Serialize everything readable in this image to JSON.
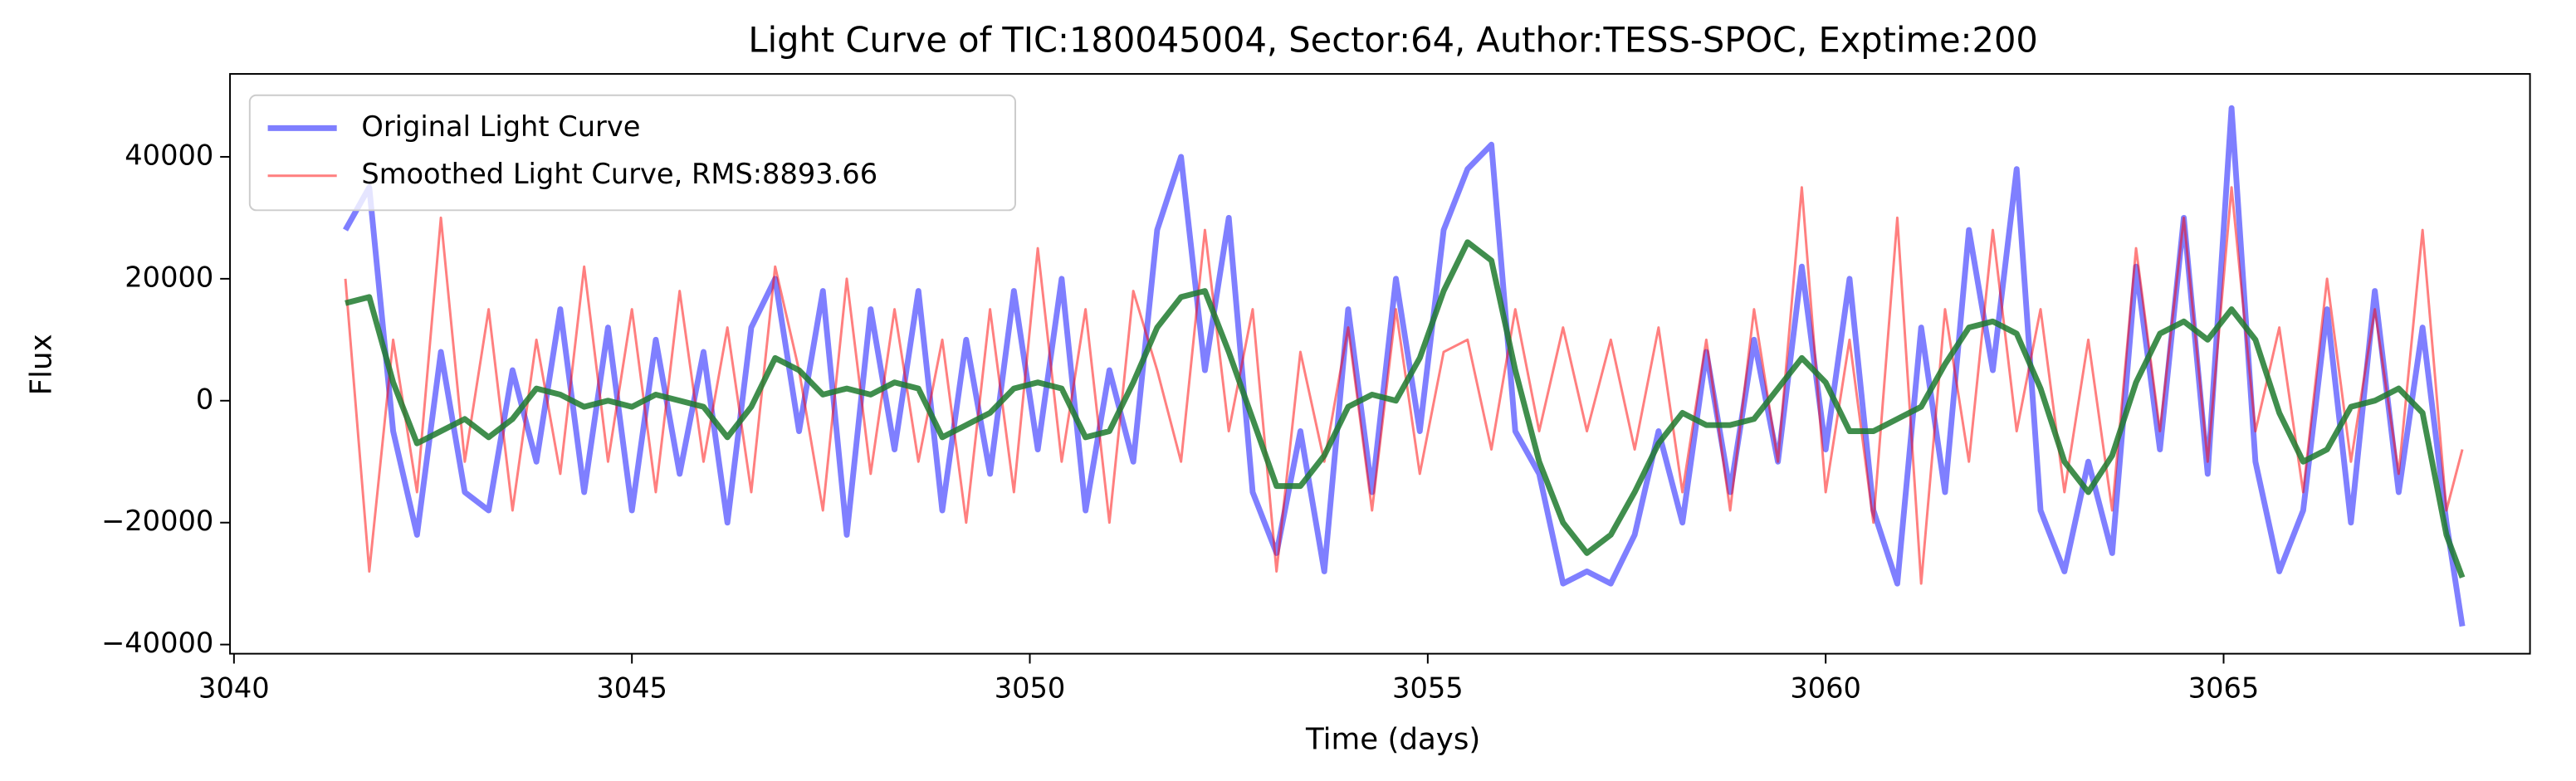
{
  "chart_data": {
    "type": "line",
    "title": "Light Curve of TIC:180045004, Sector:64, Author:TESS-SPOC, Exptime:200",
    "x_label": "Time (days)",
    "y_label": "Flux",
    "x": [
      3041.4,
      3041.7,
      3042.0,
      3042.3,
      3042.6,
      3042.9,
      3043.2,
      3043.5,
      3043.8,
      3044.1,
      3044.4,
      3044.7,
      3045.0,
      3045.3,
      3045.6,
      3045.9,
      3046.2,
      3046.5,
      3046.8,
      3047.1,
      3047.4,
      3047.7,
      3048.0,
      3048.3,
      3048.6,
      3048.9,
      3049.2,
      3049.5,
      3049.8,
      3050.1,
      3050.4,
      3050.7,
      3051.0,
      3051.3,
      3051.6,
      3051.9,
      3052.2,
      3052.5,
      3052.8,
      3053.1,
      3053.4,
      3053.7,
      3054.0,
      3054.3,
      3054.6,
      3054.9,
      3055.2,
      3055.5,
      3055.8,
      3056.1,
      3056.4,
      3056.7,
      3057.0,
      3057.3,
      3057.6,
      3057.9,
      3058.2,
      3058.5,
      3058.8,
      3059.1,
      3059.4,
      3059.7,
      3060.0,
      3060.3,
      3060.6,
      3060.9,
      3061.2,
      3061.5,
      3061.8,
      3062.1,
      3062.4,
      3062.7,
      3063.0,
      3063.3,
      3063.6,
      3063.9,
      3064.2,
      3064.5,
      3064.8,
      3065.1,
      3065.4,
      3065.7,
      3066.0,
      3066.3,
      3066.6,
      3066.9,
      3067.2,
      3067.5,
      3067.8,
      3068.0
    ],
    "series": [
      {
        "name": "Original Light Curve",
        "color": "#0000ff",
        "alpha": 0.5,
        "width": 3.5,
        "values": [
          28000,
          35000,
          -5000,
          -22000,
          8000,
          -15000,
          -18000,
          5000,
          -10000,
          15000,
          -15000,
          12000,
          -18000,
          10000,
          -12000,
          8000,
          -20000,
          12000,
          20000,
          -5000,
          18000,
          -22000,
          15000,
          -8000,
          18000,
          -18000,
          10000,
          -12000,
          18000,
          -8000,
          20000,
          -18000,
          5000,
          -10000,
          28000,
          40000,
          5000,
          30000,
          -15000,
          -25000,
          -5000,
          -28000,
          15000,
          -15000,
          20000,
          -5000,
          28000,
          38000,
          42000,
          -5000,
          -12000,
          -30000,
          -28000,
          -30000,
          -22000,
          -5000,
          -20000,
          8000,
          -15000,
          10000,
          -10000,
          22000,
          -8000,
          20000,
          -18000,
          -30000,
          12000,
          -15000,
          28000,
          5000,
          38000,
          -18000,
          -28000,
          -10000,
          -25000,
          22000,
          -8000,
          30000,
          -12000,
          48000,
          -10000,
          -28000,
          -18000,
          15000,
          -20000,
          18000,
          -15000,
          12000,
          -20000,
          -37000
        ]
      },
      {
        "name": "Smoothed Light Curve, RMS:8893.66",
        "color": "#ff0000",
        "alpha": 0.5,
        "width": 1.5,
        "values": [
          20000,
          -28000,
          10000,
          -15000,
          30000,
          -10000,
          15000,
          -18000,
          10000,
          -12000,
          22000,
          -10000,
          15000,
          -15000,
          18000,
          -10000,
          12000,
          -15000,
          22000,
          5000,
          -18000,
          20000,
          -12000,
          15000,
          -10000,
          10000,
          -20000,
          15000,
          -15000,
          25000,
          -10000,
          15000,
          -20000,
          18000,
          5000,
          -10000,
          28000,
          -5000,
          15000,
          -28000,
          8000,
          -10000,
          12000,
          -18000,
          15000,
          -12000,
          8000,
          10000,
          -8000,
          15000,
          -5000,
          12000,
          -5000,
          10000,
          -8000,
          12000,
          -15000,
          10000,
          -18000,
          15000,
          -10000,
          35000,
          -15000,
          10000,
          -20000,
          30000,
          -30000,
          15000,
          -10000,
          28000,
          -5000,
          15000,
          -15000,
          10000,
          -18000,
          25000,
          -5000,
          30000,
          -10000,
          35000,
          -5000,
          12000,
          -15000,
          20000,
          -10000,
          15000,
          -12000,
          28000,
          -18000,
          -8000
        ]
      },
      {
        "color": "#1f7a2e",
        "alpha": 0.85,
        "width": 3.5,
        "values": [
          16000,
          17000,
          3000,
          -7000,
          -5000,
          -3000,
          -6000,
          -3000,
          2000,
          1000,
          -1000,
          0,
          -1000,
          1000,
          0,
          -1000,
          -6000,
          -1000,
          7000,
          5000,
          1000,
          2000,
          1000,
          3000,
          2000,
          -6000,
          -4000,
          -2000,
          2000,
          3000,
          2000,
          -6000,
          -5000,
          3000,
          12000,
          17000,
          18000,
          8000,
          -3000,
          -14000,
          -14000,
          -9000,
          -1000,
          1000,
          0,
          7000,
          18000,
          26000,
          23000,
          5000,
          -10000,
          -20000,
          -25000,
          -22000,
          -15000,
          -7000,
          -2000,
          -4000,
          -4000,
          -3000,
          2000,
          7000,
          3000,
          -5000,
          -5000,
          -3000,
          -1000,
          6000,
          12000,
          13000,
          11000,
          2000,
          -10000,
          -15000,
          -9000,
          3000,
          11000,
          13000,
          10000,
          15000,
          10000,
          -2000,
          -10000,
          -8000,
          -1000,
          0,
          2000,
          -2000,
          -22000,
          -29000
        ]
      }
    ],
    "xlim": [
      3039.95,
      3068.85
    ],
    "ylim": [
      -41500,
      53600
    ],
    "xticks": [
      3040,
      3045,
      3050,
      3055,
      3060,
      3065
    ],
    "yticks": [
      {
        "value": -40000,
        "label": "−40000"
      },
      {
        "value": -20000,
        "label": "−20000"
      },
      0,
      20000,
      40000
    ],
    "legend": "upper left",
    "grid": false
  }
}
